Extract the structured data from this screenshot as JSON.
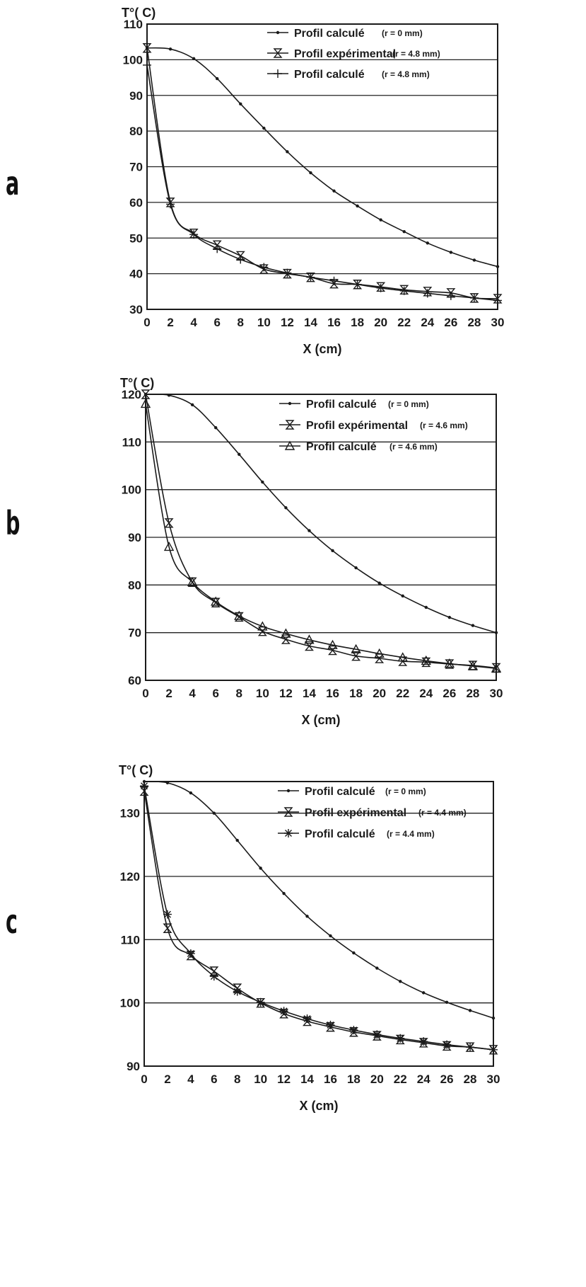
{
  "chart_data": [
    {
      "type": "line",
      "panel_label": "a",
      "ylabel": "T°( C)",
      "xlabel": "X (cm)",
      "xlim": [
        0,
        30
      ],
      "ylim": [
        30,
        110
      ],
      "x_ticks": [
        0,
        2,
        4,
        6,
        8,
        10,
        12,
        14,
        16,
        18,
        20,
        22,
        24,
        26,
        28,
        30
      ],
      "y_ticks": [
        30,
        40,
        50,
        60,
        70,
        80,
        90,
        100,
        110
      ],
      "grid": "horizontal",
      "legend_position": "top-right",
      "series": [
        {
          "name": "Profil calculé",
          "param": "(r = 0 mm)",
          "marker": "dot",
          "x": [
            0,
            2,
            4,
            6,
            8,
            10,
            12,
            14,
            16,
            18,
            20,
            22,
            24,
            26,
            28,
            30
          ],
          "y": [
            103.3,
            103,
            100.3,
            94.7,
            87.6,
            80.8,
            74.2,
            68.3,
            63.2,
            59,
            55.1,
            51.8,
            48.6,
            46,
            43.8,
            42
          ]
        },
        {
          "name": "Profil expérimental",
          "param": "(r = 4.8 mm)",
          "marker": "hourglass",
          "x": [
            0,
            2,
            4,
            6,
            8,
            10,
            12,
            14,
            16,
            18,
            20,
            22,
            24,
            26,
            28,
            30
          ],
          "y": [
            103.3,
            60,
            51.3,
            48,
            45,
            41.3,
            40,
            39,
            37.2,
            37,
            36.3,
            35.5,
            35,
            34.6,
            33.2,
            33
          ]
        },
        {
          "name": "Profil calculé",
          "param": "(r = 4.8 mm)",
          "marker": "plus",
          "x": [
            0,
            2,
            4,
            6,
            8,
            10,
            12,
            14,
            16,
            18,
            20,
            22,
            24,
            26,
            28,
            30
          ],
          "y": [
            98.5,
            59.5,
            51,
            47,
            44,
            41.8,
            40.2,
            39,
            38,
            37,
            36,
            35.2,
            34.5,
            33.8,
            33.2,
            32.5
          ]
        }
      ]
    },
    {
      "type": "line",
      "panel_label": "b",
      "ylabel": "T°( C)",
      "xlabel": "X (cm)",
      "xlim": [
        0,
        30
      ],
      "ylim": [
        60,
        120
      ],
      "x_ticks": [
        0,
        2,
        4,
        6,
        8,
        10,
        12,
        14,
        16,
        18,
        20,
        22,
        24,
        26,
        28,
        30
      ],
      "y_ticks": [
        60,
        70,
        80,
        90,
        100,
        110,
        120
      ],
      "grid": "horizontal",
      "legend_position": "top-right",
      "series": [
        {
          "name": "Profil calculé",
          "param": "(r = 0 mm)",
          "marker": "dot",
          "x": [
            0,
            2,
            4,
            6,
            8,
            10,
            12,
            14,
            16,
            18,
            20,
            22,
            24,
            26,
            28,
            30
          ],
          "y": [
            120,
            119.8,
            117.8,
            113,
            107.4,
            101.6,
            96.2,
            91.4,
            87.2,
            83.6,
            80.4,
            77.7,
            75.3,
            73.2,
            71.5,
            70
          ]
        },
        {
          "name": "Profil expérimental",
          "param": "(r = 4.6 mm)",
          "marker": "hourglass",
          "x": [
            0,
            2,
            4,
            6,
            8,
            10,
            12,
            14,
            16,
            18,
            20,
            22,
            24,
            26,
            28,
            30
          ],
          "y": [
            120,
            93,
            80.6,
            76.3,
            73.3,
            70.3,
            68.6,
            67.2,
            66.3,
            65.1,
            64.6,
            64,
            63.8,
            63.4,
            63.1,
            62.6
          ]
        },
        {
          "name": "Profil calculé",
          "param": "(r = 4.6 mm)",
          "marker": "triangle",
          "x": [
            0,
            2,
            4,
            6,
            8,
            10,
            12,
            14,
            16,
            18,
            20,
            22,
            24,
            26,
            28,
            30
          ],
          "y": [
            118,
            88,
            80.6,
            76.5,
            73.5,
            71.3,
            69.8,
            68.5,
            67.4,
            66.5,
            65.6,
            64.8,
            64.1,
            63.5,
            63,
            62.5
          ]
        }
      ]
    },
    {
      "type": "line",
      "panel_label": "c",
      "ylabel": "T°( C)",
      "xlabel": "X (cm)",
      "xlim": [
        0,
        30
      ],
      "ylim": [
        90,
        135
      ],
      "x_ticks": [
        0,
        2,
        4,
        6,
        8,
        10,
        12,
        14,
        16,
        18,
        20,
        22,
        24,
        26,
        28,
        30
      ],
      "y_ticks": [
        90,
        100,
        110,
        120,
        130
      ],
      "grid": "horizontal",
      "legend_position": "top-right",
      "series": [
        {
          "name": "Profil calculé",
          "param": "(r = 0 mm)",
          "marker": "dot",
          "x": [
            0,
            2,
            4,
            6,
            8,
            10,
            12,
            14,
            16,
            18,
            20,
            22,
            24,
            26,
            28,
            30
          ],
          "y": [
            135,
            134.8,
            133.2,
            130,
            125.7,
            121.3,
            117.3,
            113.7,
            110.6,
            107.9,
            105.5,
            103.4,
            101.6,
            100.1,
            98.8,
            97.6
          ]
        },
        {
          "name": "Profil expérimental",
          "param": "(r = 4.4 mm)",
          "marker": "hourglass",
          "x": [
            0,
            2,
            4,
            6,
            8,
            10,
            12,
            14,
            16,
            18,
            20,
            22,
            24,
            26,
            28,
            30
          ],
          "y": [
            133.5,
            111.8,
            107.5,
            105,
            102.3,
            100,
            98.3,
            97.1,
            96.2,
            95.4,
            94.8,
            94.2,
            93.7,
            93.2,
            93,
            92.6
          ]
        },
        {
          "name": "Profil calculé",
          "param": "(r = 4.4 mm)",
          "marker": "star",
          "x": [
            0,
            2,
            4,
            6,
            8,
            10,
            12,
            14,
            16,
            18,
            20,
            22,
            24,
            26,
            28,
            30
          ],
          "y": [
            134.3,
            114,
            107.8,
            104.2,
            101.8,
            100.1,
            98.7,
            97.5,
            96.5,
            95.7,
            95,
            94.4,
            93.9,
            93.4,
            93,
            92.6
          ]
        }
      ]
    }
  ]
}
